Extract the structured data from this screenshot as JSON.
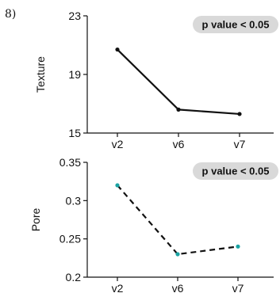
{
  "panel_label": "8)",
  "chart_data": [
    {
      "type": "line",
      "categories": [
        "v2",
        "v6",
        "v7"
      ],
      "series": [
        {
          "values": [
            20.7,
            16.6,
            16.3
          ]
        }
      ],
      "ylabel": "Texture",
      "xlabel": "",
      "ylim": [
        15,
        23
      ],
      "yticks": [
        "15",
        "19",
        "23"
      ],
      "annotation": "p value < 0.05",
      "style": {
        "line": "solid",
        "line_color": "#111111",
        "marker_color": "#111111"
      },
      "grid": false
    },
    {
      "type": "line",
      "categories": [
        "v2",
        "v6",
        "v7"
      ],
      "series": [
        {
          "values": [
            0.32,
            0.23,
            0.24
          ]
        }
      ],
      "ylabel": "Pore",
      "xlabel": "",
      "ylim": [
        0.2,
        0.35
      ],
      "yticks": [
        "0.2",
        "0.25",
        "0.3",
        "0.35"
      ],
      "annotation": "p value < 0.05",
      "style": {
        "line": "dashed",
        "line_color": "#111111",
        "marker_color": "#1aa3a3"
      },
      "grid": false
    }
  ]
}
